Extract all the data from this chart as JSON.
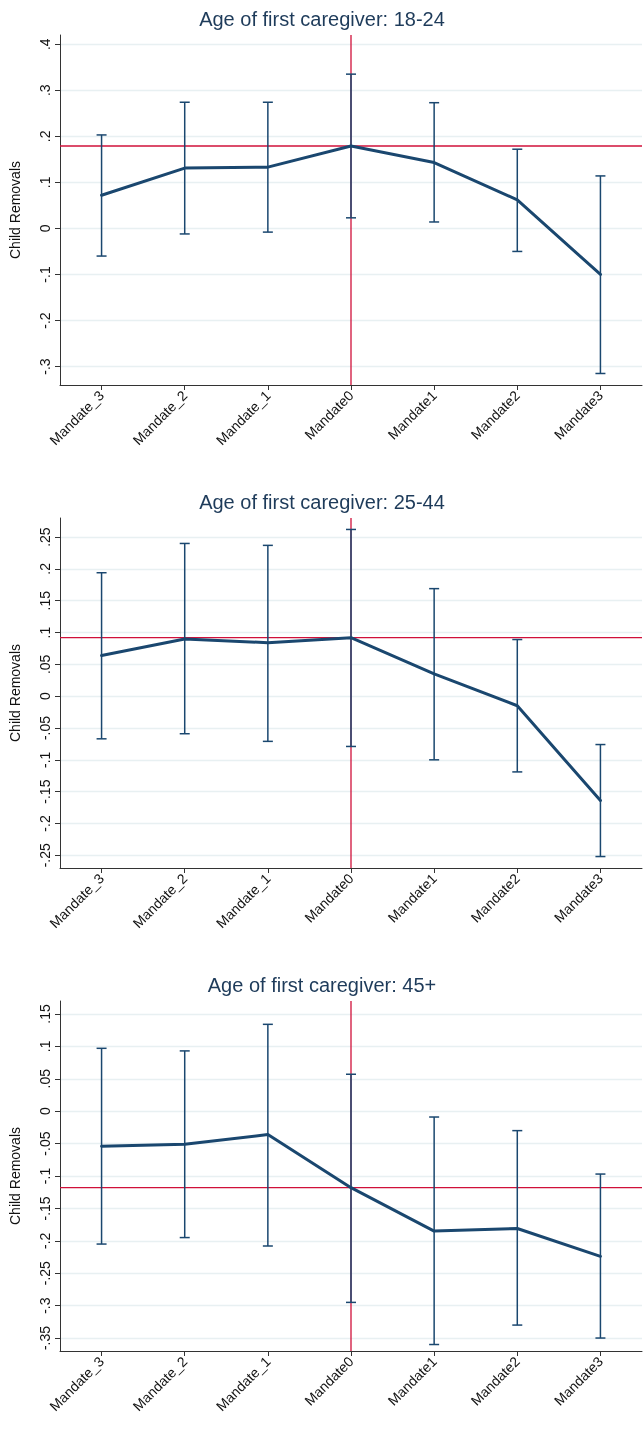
{
  "chart_data": [
    {
      "type": "line",
      "title": "Age of first caregiver: 18-24",
      "ylabel": "Child Removals",
      "categories": [
        "Mandate_3",
        "Mandate_2",
        "Mandate_1",
        "Mandate0",
        "Mandate1",
        "Mandate2",
        "Mandate3"
      ],
      "values": [
        0.072,
        0.131,
        0.133,
        0.179,
        0.143,
        0.062,
        -0.1
      ],
      "errors": [
        [
          -0.06,
          0.203
        ],
        [
          -0.012,
          0.274
        ],
        [
          -0.008,
          0.274
        ],
        [
          0.023,
          0.335
        ],
        [
          0.014,
          0.273
        ],
        [
          -0.05,
          0.172
        ],
        [
          -0.315,
          0.114
        ]
      ],
      "color": "#1a476f",
      "ylim": [
        -0.34,
        0.42
      ],
      "yticks": [
        {
          "value": -0.3,
          "label": "-.3"
        },
        {
          "value": -0.2,
          "label": "-.2"
        },
        {
          "value": -0.1,
          "label": "-.1"
        },
        {
          "value": 0,
          "label": "0"
        },
        {
          "value": 0.1,
          "label": ".1"
        },
        {
          "value": 0.2,
          "label": ".2"
        },
        {
          "value": 0.3,
          "label": ".3"
        },
        {
          "value": 0.4,
          "label": ".4"
        }
      ],
      "ref_lines": [
        {
          "axis": "y",
          "value": 0.179,
          "color": "#d0103a"
        },
        {
          "axis": "x",
          "value": "Mandate0",
          "color": "#d0103a"
        }
      ],
      "grid": "y",
      "marker": "none",
      "line_style": "solid"
    },
    {
      "type": "line",
      "title": "Age of first caregiver: 25-44",
      "ylabel": "Child Removals",
      "categories": [
        "Mandate_3",
        "Mandate_2",
        "Mandate_1",
        "Mandate0",
        "Mandate1",
        "Mandate2",
        "Mandate3"
      ],
      "values": [
        0.064,
        0.09,
        0.084,
        0.092,
        0.035,
        -0.015,
        -0.164
      ],
      "errors": [
        [
          -0.067,
          0.194
        ],
        [
          -0.059,
          0.24
        ],
        [
          -0.071,
          0.237
        ],
        [
          -0.079,
          0.262
        ],
        [
          -0.1,
          0.169
        ],
        [
          -0.119,
          0.089
        ],
        [
          -0.252,
          -0.076
        ]
      ],
      "color": "#1a476f",
      "ylim": [
        -0.27,
        0.28
      ],
      "yticks": [
        {
          "value": -0.25,
          "label": "-.25"
        },
        {
          "value": -0.2,
          "label": "-.2"
        },
        {
          "value": -0.15,
          "label": "-.15"
        },
        {
          "value": -0.1,
          "label": "-.1"
        },
        {
          "value": -0.05,
          "label": "-.05"
        },
        {
          "value": 0,
          "label": "0"
        },
        {
          "value": 0.05,
          "label": ".05"
        },
        {
          "value": 0.1,
          "label": ".1"
        },
        {
          "value": 0.15,
          "label": ".15"
        },
        {
          "value": 0.2,
          "label": ".2"
        },
        {
          "value": 0.25,
          "label": ".25"
        }
      ],
      "ref_lines": [
        {
          "axis": "y",
          "value": 0.092,
          "color": "#d0103a"
        },
        {
          "axis": "x",
          "value": "Mandate0",
          "color": "#d0103a"
        }
      ],
      "grid": "y",
      "marker": "none",
      "line_style": "solid"
    },
    {
      "type": "line",
      "title": "Age of first caregiver: 45+",
      "ylabel": "Child Removals",
      "categories": [
        "Mandate_3",
        "Mandate_2",
        "Mandate_1",
        "Mandate0",
        "Mandate1",
        "Mandate2",
        "Mandate3"
      ],
      "values": [
        -0.054,
        -0.051,
        -0.036,
        -0.118,
        -0.185,
        -0.181,
        -0.224
      ],
      "errors": [
        [
          -0.205,
          0.097
        ],
        [
          -0.195,
          0.093
        ],
        [
          -0.208,
          0.134
        ],
        [
          -0.295,
          0.057
        ],
        [
          -0.36,
          -0.009
        ],
        [
          -0.33,
          -0.03
        ],
        [
          -0.35,
          -0.097
        ]
      ],
      "color": "#1a476f",
      "ylim": [
        -0.37,
        0.17
      ],
      "yticks": [
        {
          "value": -0.35,
          "label": "-.35"
        },
        {
          "value": -0.3,
          "label": "-.3"
        },
        {
          "value": -0.25,
          "label": "-.25"
        },
        {
          "value": -0.2,
          "label": "-.2"
        },
        {
          "value": -0.15,
          "label": "-.15"
        },
        {
          "value": -0.1,
          "label": "-.1"
        },
        {
          "value": -0.05,
          "label": "-.05"
        },
        {
          "value": 0,
          "label": "0"
        },
        {
          "value": 0.05,
          "label": ".05"
        },
        {
          "value": 0.1,
          "label": ".1"
        },
        {
          "value": 0.15,
          "label": ".15"
        }
      ],
      "ref_lines": [
        {
          "axis": "y",
          "value": -0.118,
          "color": "#d0103a"
        },
        {
          "axis": "x",
          "value": "Mandate0",
          "color": "#d0103a"
        }
      ],
      "grid": "y",
      "marker": "none",
      "line_style": "solid"
    }
  ]
}
